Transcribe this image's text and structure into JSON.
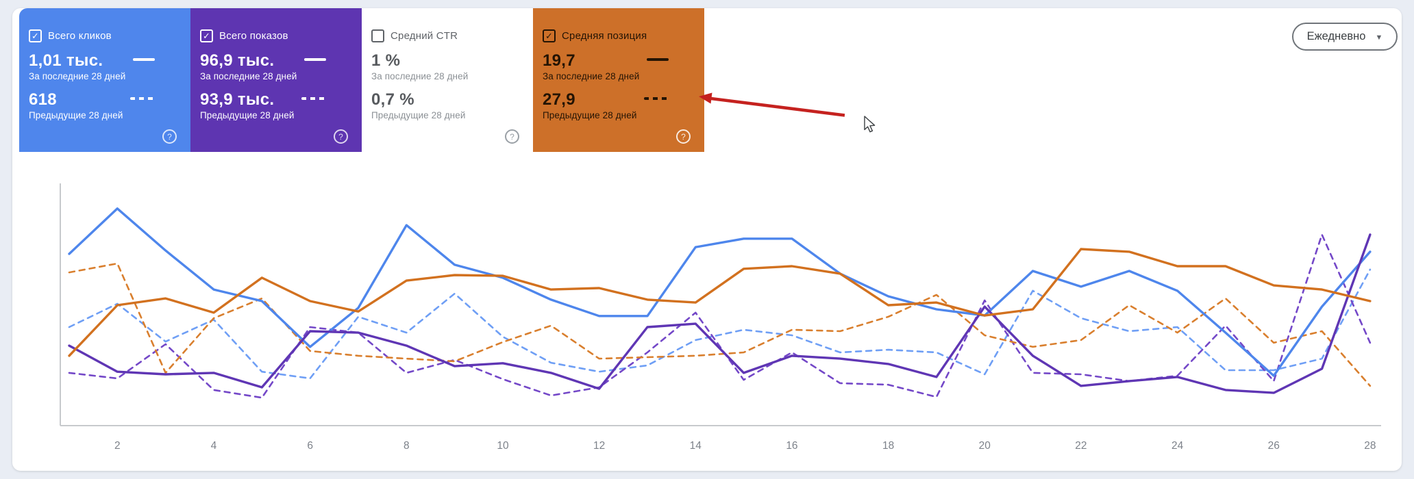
{
  "ui": {
    "check_glyph": "✓",
    "caret_glyph": "▼",
    "help_glyph": "?"
  },
  "toolbar": {
    "granularity_label": "Ежедневно"
  },
  "cards": [
    {
      "label": "Всего кликов",
      "checked": true,
      "bg": "#4f86ec",
      "fg": "#ffffff",
      "value_fg": "#ffffff",
      "sub_fg": "#ffffff",
      "help_fg": "rgba(255,255,255,0.8)",
      "current": {
        "value": "1,01 тыс.",
        "label": "За последние 28 дней"
      },
      "previous": {
        "value": "618",
        "label": "Предыдущие 28 дней"
      }
    },
    {
      "label": "Всего показов",
      "checked": true,
      "bg": "#5e35b1",
      "fg": "#ffffff",
      "value_fg": "#ffffff",
      "sub_fg": "#ffffff",
      "help_fg": "rgba(255,255,255,0.8)",
      "current": {
        "value": "96,9 тыс.",
        "label": "За последние 28 дней"
      },
      "previous": {
        "value": "93,9 тыс.",
        "label": "Предыдущие 28 дней"
      }
    },
    {
      "label": "Средний CTR",
      "checked": false,
      "bg": "#ffffff",
      "fg": "#5f6368",
      "value_fg": "#575a5e",
      "sub_fg": "#8b9095",
      "help_fg": "#9aa0a6",
      "current": {
        "value": "1 %",
        "label": "За последние 28 дней"
      },
      "previous": {
        "value": "0,7 %",
        "label": "Предыдущие 28 дней"
      }
    },
    {
      "label": "Средняя позиция",
      "checked": true,
      "bg": "#cd7029",
      "fg": "#241404",
      "value_fg": "#241404",
      "sub_fg": "#241404",
      "help_fg": "rgba(255,255,255,0.85)",
      "current": {
        "value": "19,7",
        "label": "За последние 28 дней"
      },
      "previous": {
        "value": "27,9",
        "label": "Предыдущие 28 дней"
      }
    }
  ],
  "chart_data": {
    "type": "line",
    "x": [
      1,
      2,
      3,
      4,
      5,
      6,
      7,
      8,
      9,
      10,
      11,
      12,
      13,
      14,
      15,
      16,
      17,
      18,
      19,
      20,
      21,
      22,
      23,
      24,
      25,
      26,
      27,
      28
    ],
    "xtick_labels": [
      "2",
      "4",
      "6",
      "8",
      "10",
      "12",
      "14",
      "16",
      "18",
      "20",
      "22",
      "24",
      "26",
      "28"
    ],
    "xticks": [
      2,
      4,
      6,
      8,
      10,
      12,
      14,
      16,
      18,
      20,
      22,
      24,
      26,
      28
    ],
    "ylim": [
      0,
      100
    ],
    "y_scale_note": "values normalized 0-100 of plot height (no y-axis labels shown in chart)",
    "grid": false,
    "legend": "in metric cards (solid = last 28 days, dashed = previous 28 days)",
    "series": [
      {
        "name": "Всего кликов — За последние 28 дней",
        "key": "clicks_current",
        "color": "#4e86ec",
        "dash": false,
        "values": [
          71.3,
          90.1,
          72.7,
          56.5,
          51.7,
          32.7,
          48.9,
          83.2,
          66.8,
          61.4,
          52.3,
          45.5,
          45.5,
          74.1,
          77.6,
          77.6,
          63.1,
          53.7,
          48.3,
          45.7,
          64.2,
          57.7,
          64.2,
          56.0,
          38.6,
          20.7,
          49.4,
          72.2
        ]
      },
      {
        "name": "Всего кликов — Предыдущие 28 дней",
        "key": "clicks_previous",
        "color": "#6f9ff5",
        "dash": true,
        "values": [
          40.9,
          50.6,
          34.9,
          44.0,
          22.4,
          19.6,
          45.2,
          38.6,
          54.8,
          36.9,
          26.1,
          22.4,
          25.0,
          35.5,
          39.8,
          37.5,
          30.4,
          31.5,
          30.4,
          21.3,
          56.0,
          44.6,
          39.2,
          40.9,
          23.0,
          23.0,
          27.8,
          64.8
        ]
      },
      {
        "name": "Всего показов — За последние 28 дней",
        "key": "impressions_current",
        "color": "#5f36b4",
        "dash": false,
        "values": [
          33.2,
          22.4,
          21.3,
          21.9,
          15.9,
          39.2,
          38.6,
          33.2,
          24.7,
          25.9,
          21.9,
          15.3,
          40.9,
          42.3,
          21.9,
          29.0,
          27.8,
          25.6,
          20.2,
          49.4,
          29.0,
          16.5,
          18.5,
          20.2,
          14.8,
          13.6,
          23.6,
          79.3
        ]
      },
      {
        "name": "Всего показов — Предыдущие 28 дней",
        "key": "impressions_previous",
        "color": "#7448c8",
        "dash": true,
        "values": [
          21.9,
          19.6,
          33.8,
          14.8,
          11.6,
          40.9,
          38.6,
          21.9,
          27.3,
          19.3,
          12.5,
          15.9,
          30.4,
          46.9,
          19.0,
          30.4,
          17.6,
          17.0,
          11.9,
          52.0,
          21.9,
          21.3,
          18.5,
          20.7,
          41.5,
          18.5,
          79.3,
          34.4
        ]
      },
      {
        "name": "Средняя позиция — За последние 28 дней",
        "key": "position_current",
        "color": "#d2711f",
        "dash": false,
        "values": [
          29.0,
          50.0,
          52.8,
          46.9,
          61.4,
          51.7,
          47.4,
          60.2,
          62.5,
          62.2,
          56.5,
          57.1,
          52.3,
          51.1,
          65.1,
          66.2,
          63.1,
          50.0,
          51.1,
          45.7,
          48.3,
          73.3,
          72.2,
          66.2,
          66.2,
          58.2,
          56.5,
          51.7
        ]
      },
      {
        "name": "Средняя позиция — Предыдущие 28 дней",
        "key": "position_previous",
        "color": "#d97f2e",
        "dash": true,
        "values": [
          63.6,
          67.3,
          21.9,
          44.6,
          52.8,
          31.0,
          29.0,
          27.8,
          26.7,
          34.7,
          41.5,
          27.8,
          28.4,
          29.0,
          30.4,
          39.8,
          39.2,
          45.2,
          54.3,
          37.5,
          32.7,
          35.5,
          50.0,
          38.6,
          52.8,
          34.4,
          39.2,
          16.5
        ]
      }
    ],
    "axis_color": "#c7cacd",
    "tick_color": "#7d828a"
  },
  "annotation": {
    "arrow_color": "#c5221f",
    "cursor_fill": "#ffffff",
    "cursor_stroke": "#3c4043"
  }
}
